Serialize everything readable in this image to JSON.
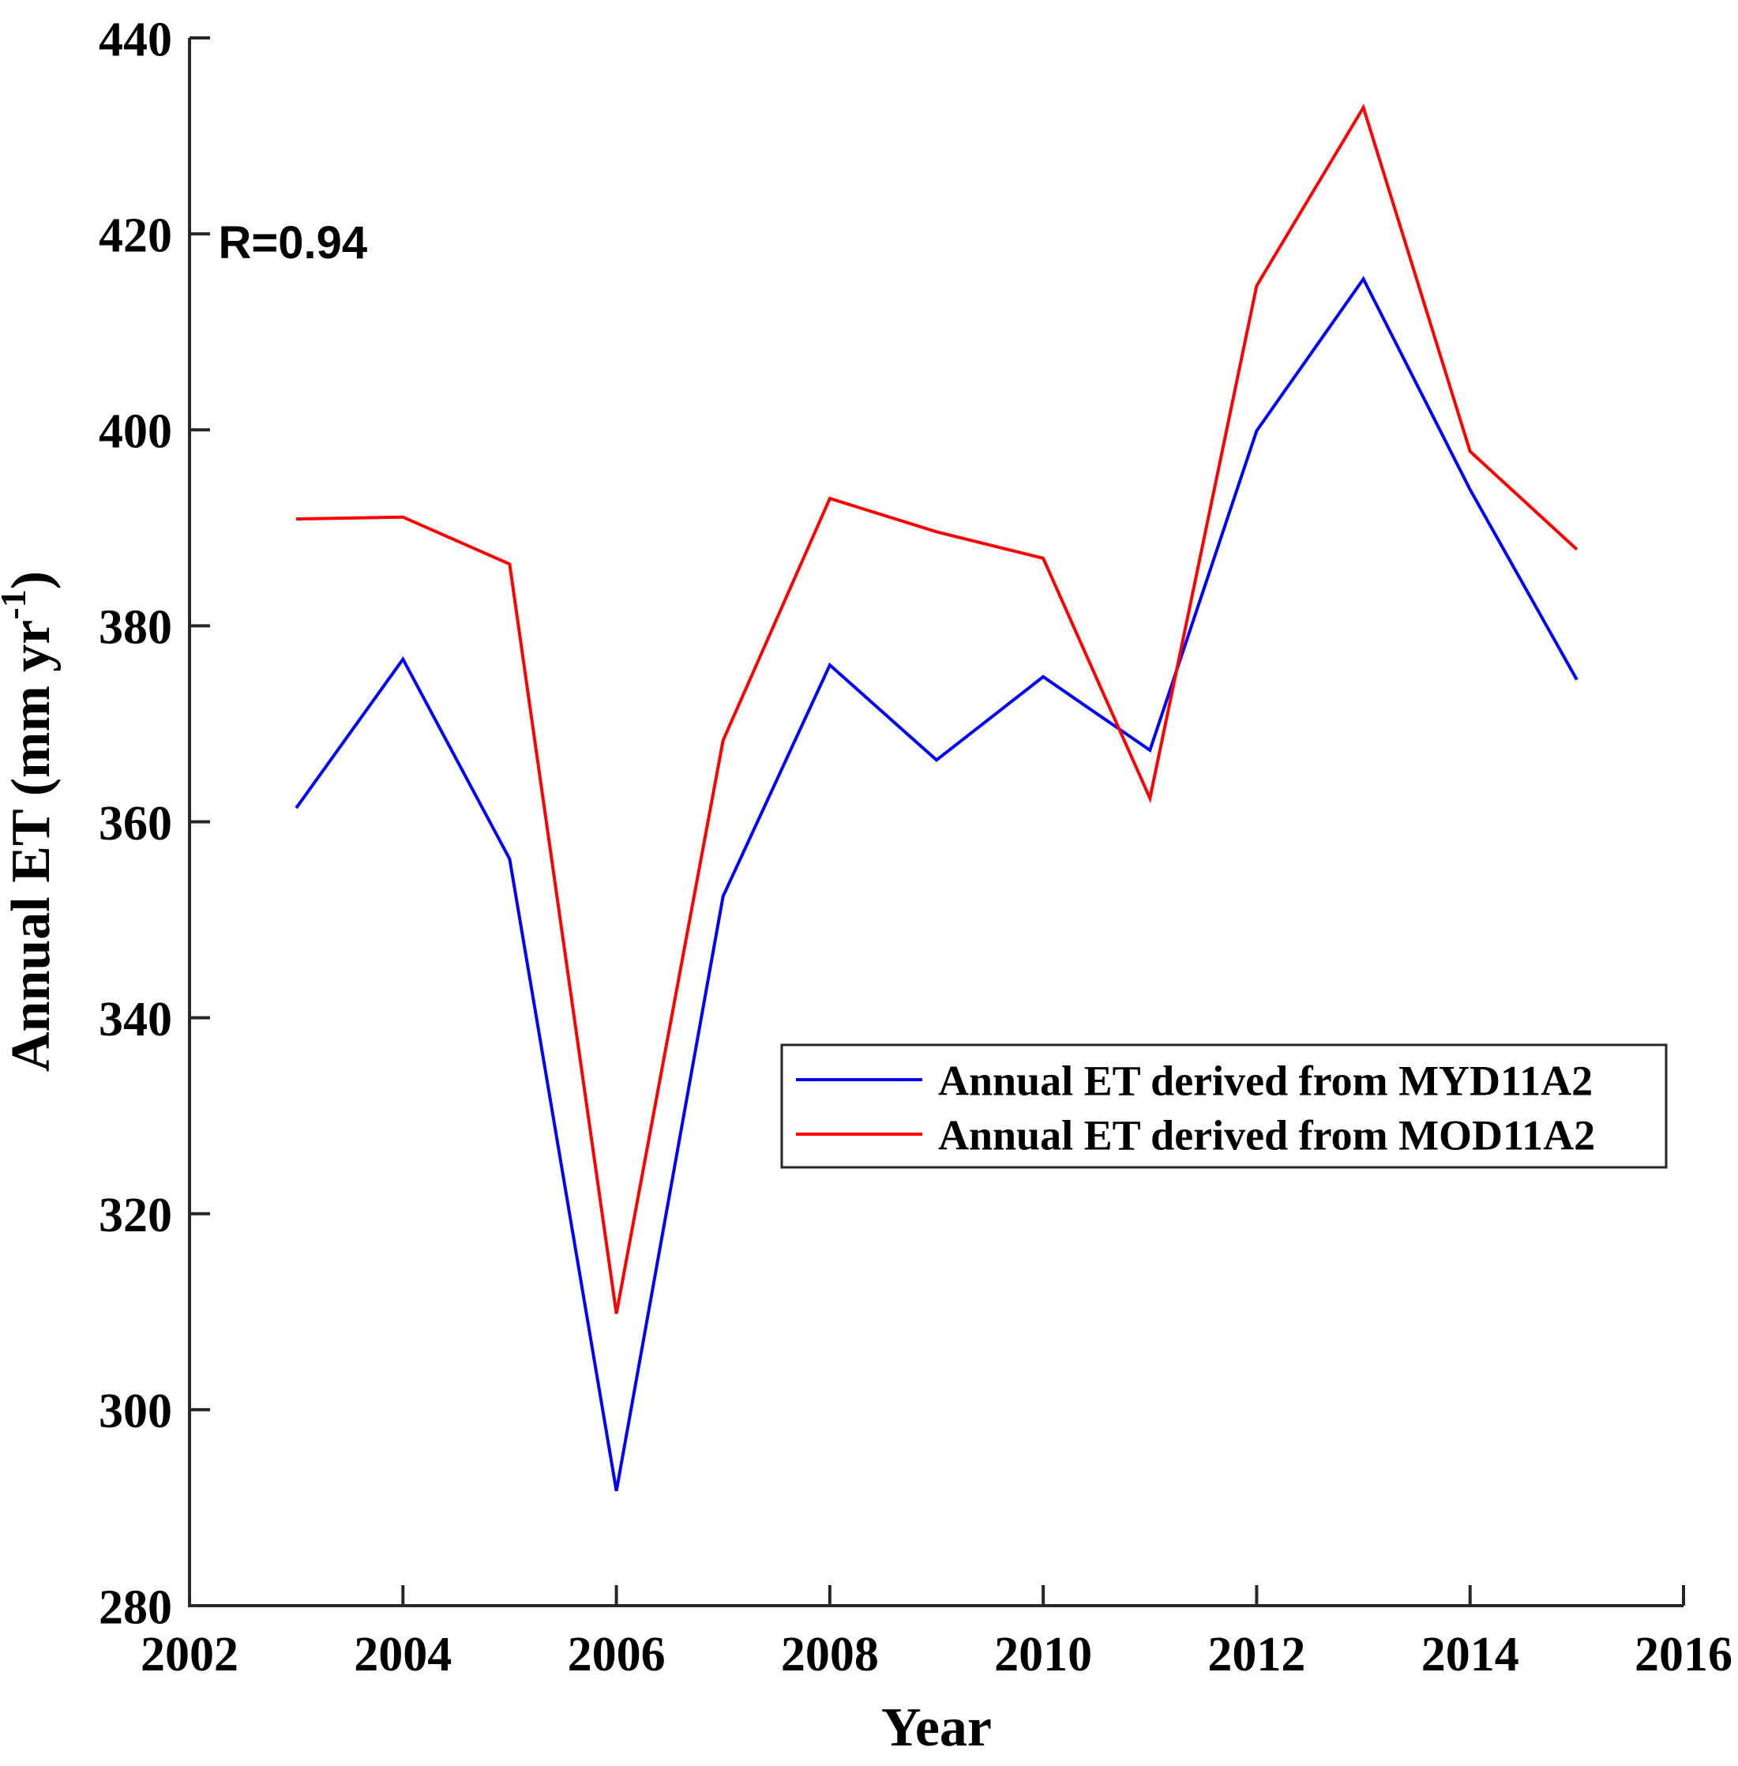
{
  "chart_data": {
    "type": "line",
    "title": "",
    "xlabel": "Year",
    "ylabel": {
      "full": "Annual ET (mm yr-1)",
      "main": "Annual ET (mm yr",
      "sup": "-1",
      "end": ")"
    },
    "annotation": {
      "text": "R=0.94",
      "x_year": 2002.27,
      "y_value": 417.5
    },
    "x": [
      2003,
      2004,
      2005,
      2006,
      2007,
      2008,
      2009,
      2010,
      2011,
      2012,
      2013,
      2014,
      2015
    ],
    "series": [
      {
        "name": "Annual ET derived from MYD11A2",
        "color": "#0000ff",
        "values": [
          361.4,
          376.6,
          356.2,
          291.7,
          352.4,
          376.0,
          366.3,
          374.8,
          367.3,
          399.9,
          415.4,
          393.9,
          374.5
        ]
      },
      {
        "name": "Annual ET derived from MOD11A2",
        "color": "#ff0000",
        "values": [
          390.9,
          391.1,
          386.3,
          309.8,
          368.3,
          393.0,
          389.6,
          386.9,
          362.4,
          414.7,
          432.9,
          397.8,
          387.8
        ]
      }
    ],
    "xlim": [
      2002,
      2016
    ],
    "ylim": [
      280,
      440
    ],
    "xticks": [
      "2002",
      "2004",
      "2006",
      "2008",
      "2010",
      "2012",
      "2014",
      "2016"
    ],
    "yticks": [
      "280",
      "300",
      "320",
      "340",
      "360",
      "380",
      "400",
      "420",
      "440"
    ],
    "grid": false,
    "legend_position": "inside-right-middle"
  },
  "colors": {
    "background": "#ffffff",
    "axis": "#262626",
    "text": "#000000",
    "series1": "#0000ff",
    "series2": "#ff0000"
  }
}
